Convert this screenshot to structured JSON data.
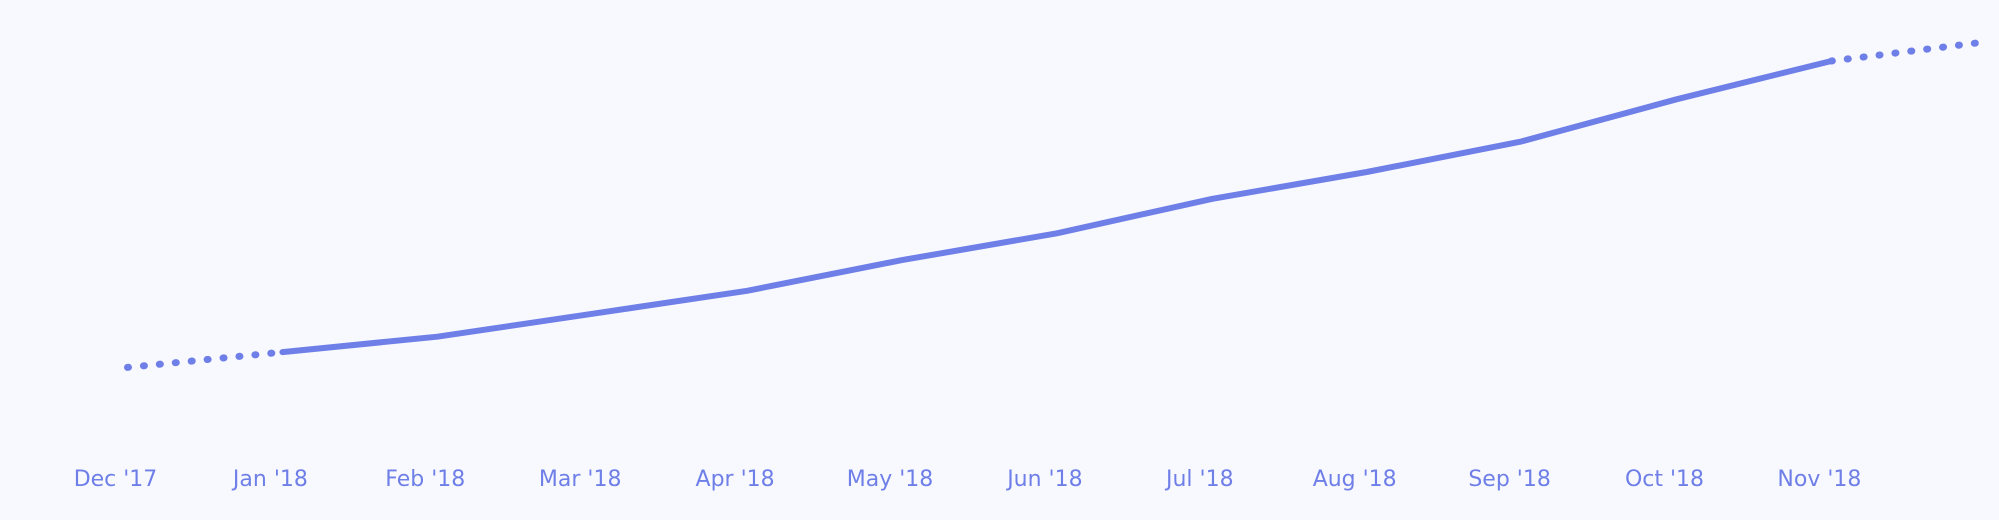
{
  "chart_data": {
    "type": "line",
    "categories": [
      "Dec '17",
      "Jan '18",
      "Feb '18",
      "Mar '18",
      "Apr '18",
      "May '18",
      "Jun '18",
      "Jul '18",
      "Aug '18",
      "Sep '18",
      "Oct '18",
      "Nov '18",
      null
    ],
    "series": [
      {
        "color": "#6f7fe8",
        "line_style": "solid",
        "values": [
          null,
          18,
          22,
          28,
          34,
          42,
          49,
          58,
          65,
          73,
          84,
          94,
          null
        ]
      },
      {
        "color": "#6f7fe8",
        "line_style": "dotted",
        "values": [
          14,
          18,
          null,
          null,
          null,
          null,
          null,
          null,
          null,
          null,
          null,
          94,
          99
        ]
      }
    ],
    "ylim": [
      0,
      100
    ],
    "grid": false
  }
}
